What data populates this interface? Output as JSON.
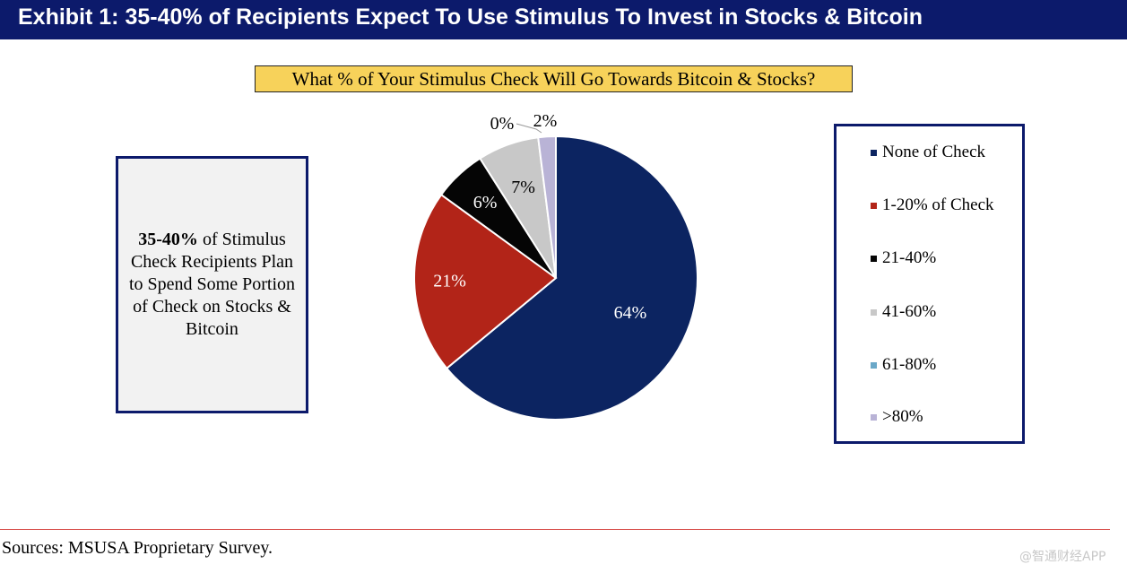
{
  "header": {
    "title": "Exhibit 1: 35-40% of Recipients Expect To Use Stimulus To Invest in Stocks & Bitcoin"
  },
  "callout": {
    "bold": "35-40%",
    "text": " of Stimulus Check Recipients Plan to Spend Some Portion of Check on Stocks & Bitcoin"
  },
  "footer": {
    "source": "Sources: MSUSA Proprietary Survey.",
    "watermark": "@智通财经APP"
  },
  "colors": {
    "header_bg": "#0c1a6b",
    "title_bg": "#f7d25a"
  },
  "chart_data": {
    "type": "pie",
    "title": "What % of Your Stimulus Check Will Go Towards Bitcoin & Stocks?",
    "legend_position": "right",
    "slices": [
      {
        "name": "None of Check",
        "value": 64,
        "label": "64%",
        "color": "#0c2461"
      },
      {
        "name": "1-20% of Check",
        "value": 21,
        "label": "21%",
        "color": "#b22418"
      },
      {
        "name": "21-40%",
        "value": 6,
        "label": "6%",
        "color": "#050505"
      },
      {
        "name": "41-60%",
        "value": 7,
        "label": "7%",
        "color": "#c8c8c8"
      },
      {
        "name": "61-80%",
        "value": 0,
        "label": "0%",
        "color": "#6aa8c8"
      },
      {
        "name": ">80%",
        "value": 2,
        "label": "2%",
        "color": "#b9b3d6"
      }
    ]
  }
}
